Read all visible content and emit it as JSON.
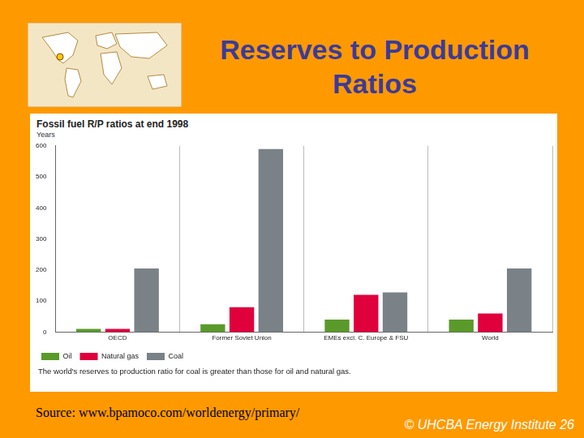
{
  "slide": {
    "title": "Reserves to Production Ratios",
    "source": "Source:  www.bpamoco.com/worldenergy/primary/",
    "footer": "© UHCBA Energy Institute 26"
  },
  "chart_data": {
    "type": "bar",
    "title": "Fossil fuel R/P ratios at end 1998",
    "y_label": "Years",
    "categories": [
      "OECD",
      "Former Soviet Union",
      "EMEs excl. C. Europe & FSU",
      "World"
    ],
    "series": [
      {
        "name": "Oil",
        "color": "#5a9a2a",
        "values": [
          10,
          25,
          40,
          40
        ]
      },
      {
        "name": "Natural gas",
        "color": "#e0003c",
        "values": [
          10,
          80,
          120,
          60
        ]
      },
      {
        "name": "Coal",
        "color": "#7a8288",
        "values": [
          205,
          590,
          128,
          205
        ]
      }
    ],
    "ylim": [
      0,
      600
    ],
    "yticks": [
      0,
      100,
      200,
      300,
      400,
      500,
      600
    ],
    "grid": false,
    "legend": "bottom-left",
    "annotations": [
      "The world's reserves to production ratio for coal is greater than those for oil and natural gas."
    ]
  }
}
